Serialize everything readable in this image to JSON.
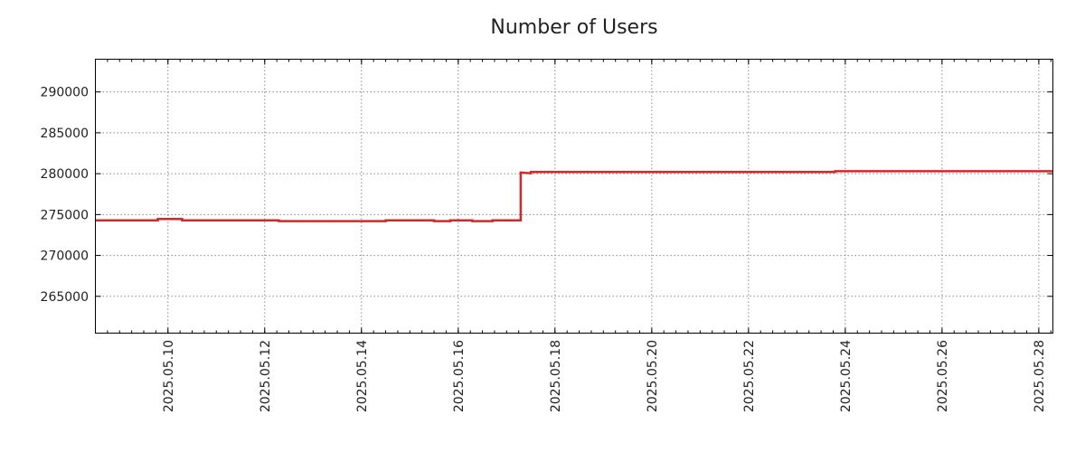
{
  "chart_data": {
    "type": "line",
    "title": "Number of Users",
    "xlabel": "",
    "ylabel": "",
    "x_type": "date",
    "xlim": [
      "2025-05-08T12:00",
      "2025-05-28T07:00"
    ],
    "ylim": [
      260500,
      294000
    ],
    "grid": true,
    "x_ticks": [
      "2025-05-10",
      "2025-05-12",
      "2025-05-14",
      "2025-05-16",
      "2025-05-18",
      "2025-05-20",
      "2025-05-22",
      "2025-05-24",
      "2025-05-26",
      "2025-05-28"
    ],
    "x_tick_labels": [
      "2025.05.10",
      "2025.05.12",
      "2025.05.14",
      "2025.05.16",
      "2025.05.18",
      "2025.05.20",
      "2025.05.22",
      "2025.05.24",
      "2025.05.26",
      "2025.05.28"
    ],
    "y_ticks": [
      265000,
      270000,
      275000,
      280000,
      285000,
      290000
    ],
    "y_tick_labels": [
      "265000",
      "270000",
      "275000",
      "280000",
      "285000",
      "290000"
    ],
    "series": [
      {
        "color": "#d62728",
        "x": [
          "2025-05-08T12:00",
          "2025-05-09T19:00",
          "2025-05-09T19:00",
          "2025-05-10T07:00",
          "2025-05-10T07:00",
          "2025-05-12T07:00",
          "2025-05-12T07:00",
          "2025-05-14T12:00",
          "2025-05-14T12:00",
          "2025-05-15T12:00",
          "2025-05-15T12:00",
          "2025-05-15T20:00",
          "2025-05-15T20:00",
          "2025-05-16T07:00",
          "2025-05-16T07:00",
          "2025-05-16T17:00",
          "2025-05-16T17:00",
          "2025-05-17T07:00",
          "2025-05-17T07:00",
          "2025-05-17T12:00",
          "2025-05-17T12:00",
          "2025-05-23T19:00",
          "2025-05-23T19:00",
          "2025-05-28T07:00"
        ],
        "y": [
          274300,
          274300,
          274450,
          274450,
          274300,
          274300,
          274200,
          274200,
          274300,
          274300,
          274200,
          274200,
          274300,
          274300,
          274200,
          274200,
          274300,
          274300,
          280150,
          280050,
          280200,
          280200,
          280300,
          280300
        ]
      }
    ]
  }
}
